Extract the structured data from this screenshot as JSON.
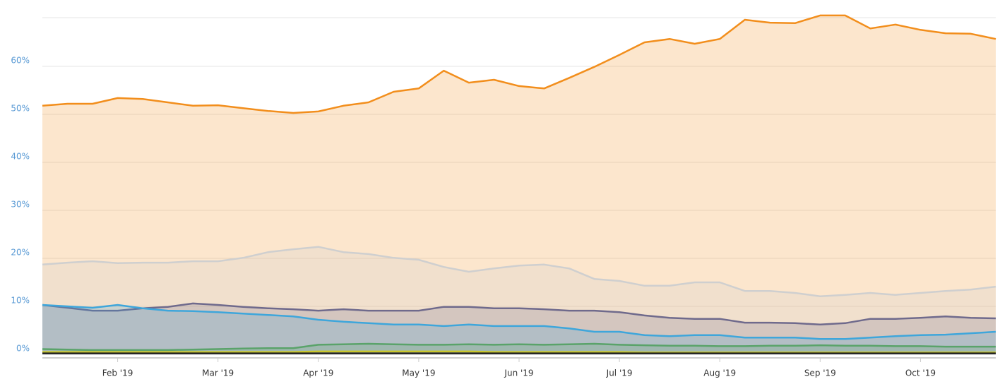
{
  "chart_data": {
    "type": "area",
    "categories": [
      null,
      null,
      null,
      "Feb '19",
      null,
      null,
      null,
      "Mar '19",
      null,
      null,
      null,
      "Apr '19",
      null,
      null,
      null,
      "May '19",
      null,
      null,
      null,
      "Jun '19",
      null,
      null,
      null,
      "Jul '19",
      null,
      null,
      null,
      "Aug '19",
      null,
      null,
      null,
      "Sep '19",
      null,
      null,
      null,
      "Oct '19",
      null,
      null,
      null
    ],
    "series": [
      {
        "color": "#f28e1c",
        "values": [
          51.8,
          52.2,
          52.2,
          53.4,
          53.2,
          52.5,
          51.8,
          51.9,
          51.3,
          50.7,
          50.3,
          50.6,
          51.8,
          52.5,
          54.7,
          55.4,
          59.1,
          56.6,
          57.2,
          55.9,
          55.4,
          57.6,
          59.9,
          62.4,
          65.0,
          65.7,
          64.7,
          65.7,
          69.7,
          69.1,
          69.0,
          70.6,
          70.6,
          67.9,
          68.7,
          67.6,
          66.9,
          66.8,
          65.7
        ]
      },
      {
        "color": "#cfcfcf",
        "values": [
          18.7,
          19.1,
          19.4,
          19.0,
          19.1,
          19.1,
          19.4,
          19.4,
          20.1,
          21.3,
          21.9,
          22.4,
          21.3,
          20.9,
          20.1,
          19.7,
          18.2,
          17.2,
          17.9,
          18.5,
          18.7,
          17.9,
          15.7,
          15.3,
          14.3,
          14.3,
          15.0,
          15.0,
          13.2,
          13.2,
          12.8,
          12.1,
          12.4,
          12.8,
          12.4,
          12.8,
          13.2,
          13.5,
          14.1
        ]
      },
      {
        "color": "#6f6a8c",
        "values": [
          10.3,
          9.7,
          9.1,
          9.1,
          9.6,
          9.9,
          10.6,
          10.3,
          9.9,
          9.6,
          9.4,
          9.1,
          9.4,
          9.1,
          9.1,
          9.1,
          9.9,
          9.9,
          9.6,
          9.6,
          9.4,
          9.1,
          9.1,
          8.8,
          8.1,
          7.6,
          7.4,
          7.4,
          6.6,
          6.6,
          6.5,
          6.2,
          6.5,
          7.4,
          7.4,
          7.6,
          7.9,
          7.6,
          7.5
        ]
      },
      {
        "color": "#3ea6db",
        "values": [
          10.3,
          10.0,
          9.7,
          10.3,
          9.6,
          9.1,
          9.0,
          8.8,
          8.5,
          8.2,
          7.9,
          7.2,
          6.8,
          6.5,
          6.2,
          6.2,
          5.9,
          6.2,
          5.9,
          5.9,
          5.9,
          5.4,
          4.7,
          4.7,
          4.0,
          3.8,
          4.0,
          4.0,
          3.5,
          3.5,
          3.5,
          3.2,
          3.2,
          3.5,
          3.8,
          4.0,
          4.1,
          4.4,
          4.7
        ]
      },
      {
        "color": "#5aa36a",
        "values": [
          1.1,
          1.0,
          0.9,
          0.9,
          0.9,
          0.9,
          1.0,
          1.1,
          1.2,
          1.3,
          1.3,
          2.0,
          2.1,
          2.2,
          2.1,
          2.0,
          2.0,
          2.1,
          2.0,
          2.1,
          2.0,
          2.1,
          2.2,
          2.0,
          1.9,
          1.8,
          1.8,
          1.7,
          1.7,
          1.8,
          1.8,
          1.9,
          1.8,
          1.8,
          1.7,
          1.7,
          1.6,
          1.6,
          1.6
        ]
      },
      {
        "color": "#c9c62a",
        "values": [
          0.5,
          0.5,
          0.5,
          0.5,
          0.5,
          0.5,
          0.5,
          0.5,
          0.5,
          0.5,
          0.5,
          0.6,
          0.6,
          0.6,
          0.6,
          0.6,
          0.6,
          0.6,
          0.5,
          0.5,
          0.5,
          0.5,
          0.5,
          0.5,
          0.4,
          0.4,
          0.4,
          0.4,
          0.4,
          0.4,
          0.4,
          0.4,
          0.4,
          0.4,
          0.4,
          0.4,
          0.4,
          0.4,
          0.4
        ]
      },
      {
        "color": "#222222",
        "values": [
          0.2,
          0.2,
          0.2,
          0.2,
          0.2,
          0.2,
          0.2,
          0.2,
          0.2,
          0.2,
          0.2,
          0.2,
          0.2,
          0.2,
          0.2,
          0.2,
          0.2,
          0.2,
          0.2,
          0.2,
          0.2,
          0.2,
          0.2,
          0.2,
          0.2,
          0.2,
          0.2,
          0.2,
          0.2,
          0.2,
          0.2,
          0.2,
          0.2,
          0.2,
          0.2,
          0.2,
          0.2,
          0.2,
          0.2
        ]
      }
    ],
    "ylim": [
      0,
      72
    ],
    "yticks": [
      {
        "value": 0,
        "label": "0%"
      },
      {
        "value": 10,
        "label": "10%"
      },
      {
        "value": 20,
        "label": "20%"
      },
      {
        "value": 30,
        "label": "30%"
      },
      {
        "value": 40,
        "label": "40%"
      },
      {
        "value": 50,
        "label": "50%"
      },
      {
        "value": 60,
        "label": "60%"
      }
    ],
    "grid": true
  }
}
